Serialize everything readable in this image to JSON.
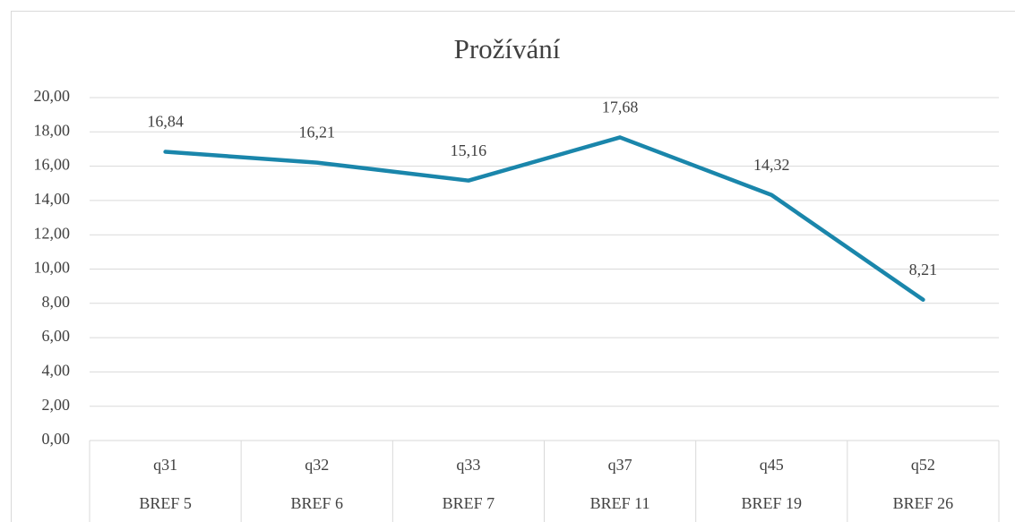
{
  "chart_data": {
    "type": "line",
    "title": "Prožívání",
    "categories": [
      "q31",
      "q32",
      "q33",
      "q37",
      "q45",
      "q52"
    ],
    "subcategories": [
      "BREF 5",
      "BREF 6",
      "BREF 7",
      "BREF 11",
      "BREF 19",
      "BREF 26"
    ],
    "values": [
      16.84,
      16.21,
      15.16,
      17.68,
      14.32,
      8.21
    ],
    "value_labels": [
      "16,84",
      "16,21",
      "15,16",
      "17,68",
      "14,32",
      "8,21"
    ],
    "color": "#1a86ab",
    "ylim": [
      0,
      20
    ],
    "yticks": [
      {
        "value": 0,
        "label": "0,00"
      },
      {
        "value": 2,
        "label": "2,00"
      },
      {
        "value": 4,
        "label": "4,00"
      },
      {
        "value": 6,
        "label": "6,00"
      },
      {
        "value": 8,
        "label": "8,00"
      },
      {
        "value": 10,
        "label": "10,00"
      },
      {
        "value": 12,
        "label": "12,00"
      },
      {
        "value": 14,
        "label": "14,00"
      },
      {
        "value": 16,
        "label": "16,00"
      },
      {
        "value": 18,
        "label": "18,00"
      },
      {
        "value": 20,
        "label": "20,00"
      }
    ],
    "grid": true
  }
}
